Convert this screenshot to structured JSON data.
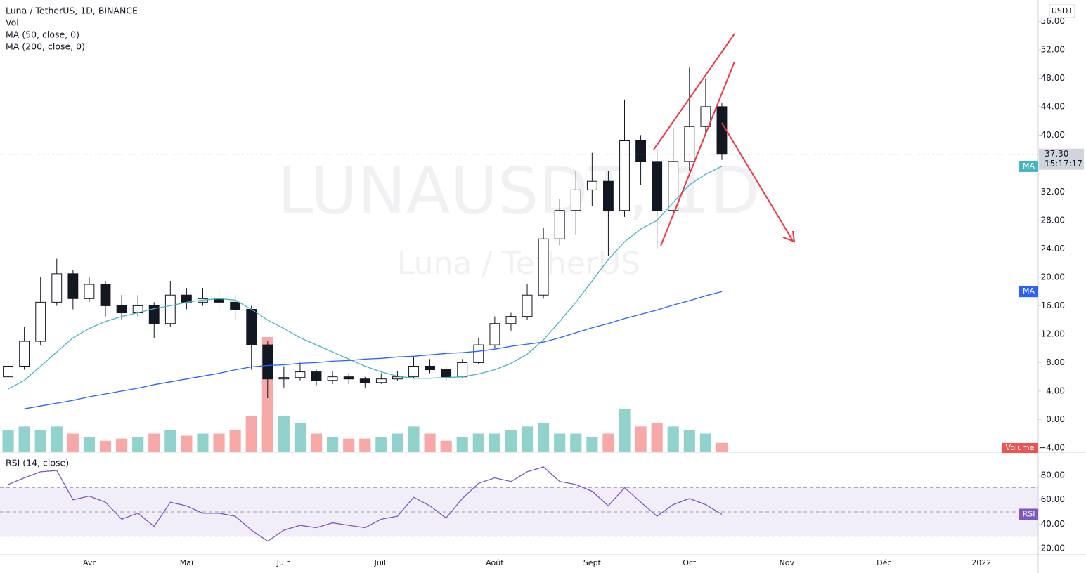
{
  "chart_data": [
    {
      "type": "candlestick",
      "title": "Luna / TetherUS, 1D, BINANCE",
      "watermark": "LUNAUSDT, 1D",
      "watermark_subtitle": "Luna / TetherUS",
      "currency": "USDT",
      "categories": [
        null,
        null,
        null,
        null,
        null,
        "Avr",
        null,
        null,
        null,
        null,
        null,
        "Mai",
        null,
        null,
        null,
        null,
        null,
        "Juin",
        null,
        null,
        null,
        null,
        null,
        "Juill",
        null,
        null,
        null,
        null,
        null,
        null,
        "Août",
        null,
        null,
        null,
        null,
        null,
        "Sept",
        null,
        null,
        null,
        null,
        null,
        "Oct",
        null,
        null,
        null,
        null,
        null,
        "Nov",
        null,
        null,
        null,
        null,
        null,
        "Déc",
        null,
        null,
        null,
        null,
        null,
        "2022",
        null,
        null,
        null
      ],
      "open": [
        6,
        7.5,
        11,
        16.5,
        20.5,
        17,
        19,
        16,
        15,
        16,
        13.5,
        17.5,
        16.5,
        17,
        16.5,
        15.5,
        10.5,
        5.7,
        5.9,
        6.7,
        5.5,
        6,
        5.7,
        5.2,
        5.7,
        6,
        7.5,
        7,
        6,
        8,
        10.5,
        13.5,
        14.5,
        17.5,
        25.4,
        29.4,
        32.3,
        33.5,
        29.4,
        39.2,
        36.3,
        29.4,
        36.3,
        41.2,
        44,
        null,
        null,
        null,
        null,
        null,
        null,
        null,
        null,
        null,
        null,
        null,
        null,
        null,
        null,
        null,
        null,
        null,
        null,
        null
      ],
      "high": [
        8.5,
        13,
        20,
        22.6,
        21,
        20,
        19.5,
        17.5,
        17.5,
        16.5,
        19.5,
        18.5,
        18.5,
        18,
        17.5,
        16,
        11,
        7.5,
        8,
        7,
        6.8,
        6.5,
        6,
        6.5,
        6.8,
        8.8,
        8.5,
        7.5,
        8.5,
        11.5,
        14.5,
        15,
        19,
        27,
        31,
        35,
        37.5,
        35,
        45,
        40,
        38,
        41,
        49.5,
        48,
        44.5,
        null,
        null,
        null,
        null,
        null,
        null,
        null,
        null,
        null,
        null,
        null,
        null,
        null,
        null,
        null,
        null,
        null,
        null,
        null
      ],
      "low": [
        5.5,
        7,
        10.5,
        16,
        15.5,
        16.5,
        14.5,
        14,
        14.5,
        11.5,
        13,
        15.5,
        16,
        15.5,
        14,
        7,
        3,
        4.5,
        5.5,
        4.8,
        5,
        5,
        4.5,
        5,
        5.5,
        5.8,
        6.5,
        5.5,
        5.8,
        7.8,
        10,
        12.5,
        14,
        17,
        24.5,
        26,
        30,
        23,
        28.5,
        33,
        24,
        28.5,
        35,
        40,
        36.5,
        null,
        null,
        null,
        null,
        null,
        null,
        null,
        null,
        null,
        null,
        null,
        null,
        null,
        null,
        null,
        null,
        null,
        null,
        null
      ],
      "close": [
        7.5,
        11,
        16.5,
        20.5,
        17,
        19,
        16,
        15,
        16,
        13.5,
        17.5,
        16.5,
        17,
        16.5,
        15.5,
        10.5,
        5.7,
        5.9,
        6.7,
        5.5,
        6,
        5.7,
        5.2,
        5.7,
        6,
        7.5,
        7,
        6,
        8,
        10.5,
        13.5,
        14.5,
        17.5,
        25.4,
        29.4,
        32.3,
        33.5,
        29.4,
        39.2,
        36.3,
        29.4,
        36.3,
        41.2,
        44,
        37.3,
        null,
        null,
        null,
        null,
        null,
        null,
        null,
        null,
        null,
        null,
        null,
        null,
        null,
        null,
        null,
        null,
        null,
        null,
        null
      ],
      "up_color": "#26a69a",
      "down_color": "#ef5350",
      "candle_color": "#131722",
      "volume": {
        "name": "Vol",
        "tag": "Volume",
        "tag_color": "#ef5350",
        "values": [
          30,
          35,
          30,
          35,
          25,
          20,
          15,
          18,
          20,
          25,
          30,
          22,
          25,
          25,
          30,
          50,
          160,
          50,
          40,
          25,
          20,
          18,
          18,
          20,
          25,
          35,
          25,
          15,
          20,
          25,
          25,
          30,
          35,
          40,
          25,
          25,
          20,
          25,
          60,
          35,
          40,
          35,
          30,
          25,
          12,
          null,
          null,
          null,
          null,
          null,
          null,
          null,
          null,
          null,
          null,
          null,
          null,
          null,
          null,
          null,
          null,
          null,
          null,
          null
        ]
      },
      "series": [
        {
          "name": "MA (50, close, 0)",
          "tag": "MA",
          "color": "#45b5c4",
          "values": [
            4.3,
            5.5,
            7.5,
            9.5,
            11.5,
            12.8,
            13.8,
            14.5,
            15,
            15.6,
            16,
            16.5,
            16.8,
            17,
            16.8,
            15.5,
            14,
            12.8,
            11.5,
            10.5,
            9.5,
            8.5,
            7.5,
            6.7,
            6.1,
            5.8,
            5.8,
            5.9,
            6,
            6.4,
            7,
            7.9,
            9.2,
            11.2,
            13.8,
            16.5,
            19.5,
            22.5,
            25,
            26.8,
            28,
            30.5,
            33,
            34.5,
            35.6,
            null,
            null,
            null,
            null,
            null,
            null,
            null,
            null,
            null,
            null,
            null,
            null,
            null,
            null,
            null,
            null,
            null,
            null,
            null
          ]
        },
        {
          "name": "MA (200, close, 0)",
          "tag": "MA",
          "color": "#2962ff",
          "values": [
            null,
            1.5,
            1.9,
            2.3,
            2.7,
            3.2,
            3.6,
            4,
            4.4,
            4.9,
            5.3,
            5.7,
            6.1,
            6.5,
            7,
            7.4,
            7.6,
            7.7,
            7.9,
            8,
            8.2,
            8.3,
            8.5,
            8.6,
            8.8,
            8.9,
            9.1,
            9.3,
            9.4,
            9.6,
            9.9,
            10.3,
            10.6,
            10.9,
            11.5,
            12.2,
            12.9,
            13.5,
            14.2,
            14.8,
            15.4,
            16.1,
            16.7,
            17.4,
            18,
            null,
            null,
            null,
            null,
            null,
            null,
            null,
            null,
            null,
            null,
            null,
            null,
            null,
            null,
            null,
            null,
            null,
            null,
            null
          ]
        }
      ],
      "last_price": {
        "value": 37.3,
        "label": "37.30"
      },
      "countdown": "15:17:17",
      "ylim": [
        -4.5,
        59
      ],
      "yticks": [
        {
          "value": -4,
          "label": "−4.00"
        },
        {
          "value": 0,
          "label": "0.00"
        },
        {
          "value": 4,
          "label": "4.00"
        },
        {
          "value": 8,
          "label": "8.00"
        },
        {
          "value": 12,
          "label": "12.00"
        },
        {
          "value": 16,
          "label": "16.00"
        },
        {
          "value": 20,
          "label": "20.00"
        },
        {
          "value": 24,
          "label": "24.00"
        },
        {
          "value": 28,
          "label": "28.00"
        },
        {
          "value": 32,
          "label": "32.00"
        },
        {
          "value": 36,
          "label": "36.00"
        },
        {
          "value": 40,
          "label": "40.00"
        },
        {
          "value": 44,
          "label": "44.00"
        },
        {
          "value": 48,
          "label": "48.00"
        },
        {
          "value": 52,
          "label": "52.00"
        },
        {
          "value": 56,
          "label": "56.00"
        }
      ]
    },
    {
      "type": "line",
      "title": "RSI (14, close)",
      "tag": "RSI",
      "color": "#7e57c2",
      "values": [
        72.5,
        78,
        83,
        84,
        60,
        63,
        58,
        44,
        49,
        38,
        58,
        55,
        49,
        49,
        46.5,
        35,
        26,
        35,
        39,
        37,
        41,
        39,
        37,
        44,
        46.5,
        62,
        55,
        45,
        61,
        73.5,
        78,
        75,
        83,
        87,
        75,
        72.5,
        67,
        55,
        70,
        58,
        46.5,
        56,
        61,
        56,
        48,
        null,
        null,
        null,
        null,
        null,
        null,
        null,
        null,
        null,
        null,
        null,
        null,
        null,
        null,
        null,
        null,
        null,
        null,
        null
      ],
      "bands": [
        30,
        50,
        70
      ],
      "ylim": [
        14.8,
        98.5
      ],
      "yticks": [
        {
          "value": 20,
          "label": "20.00"
        },
        {
          "value": 40,
          "label": "40.00"
        },
        {
          "value": 60,
          "label": "60.00"
        },
        {
          "value": 80,
          "label": "80.00"
        }
      ]
    }
  ]
}
